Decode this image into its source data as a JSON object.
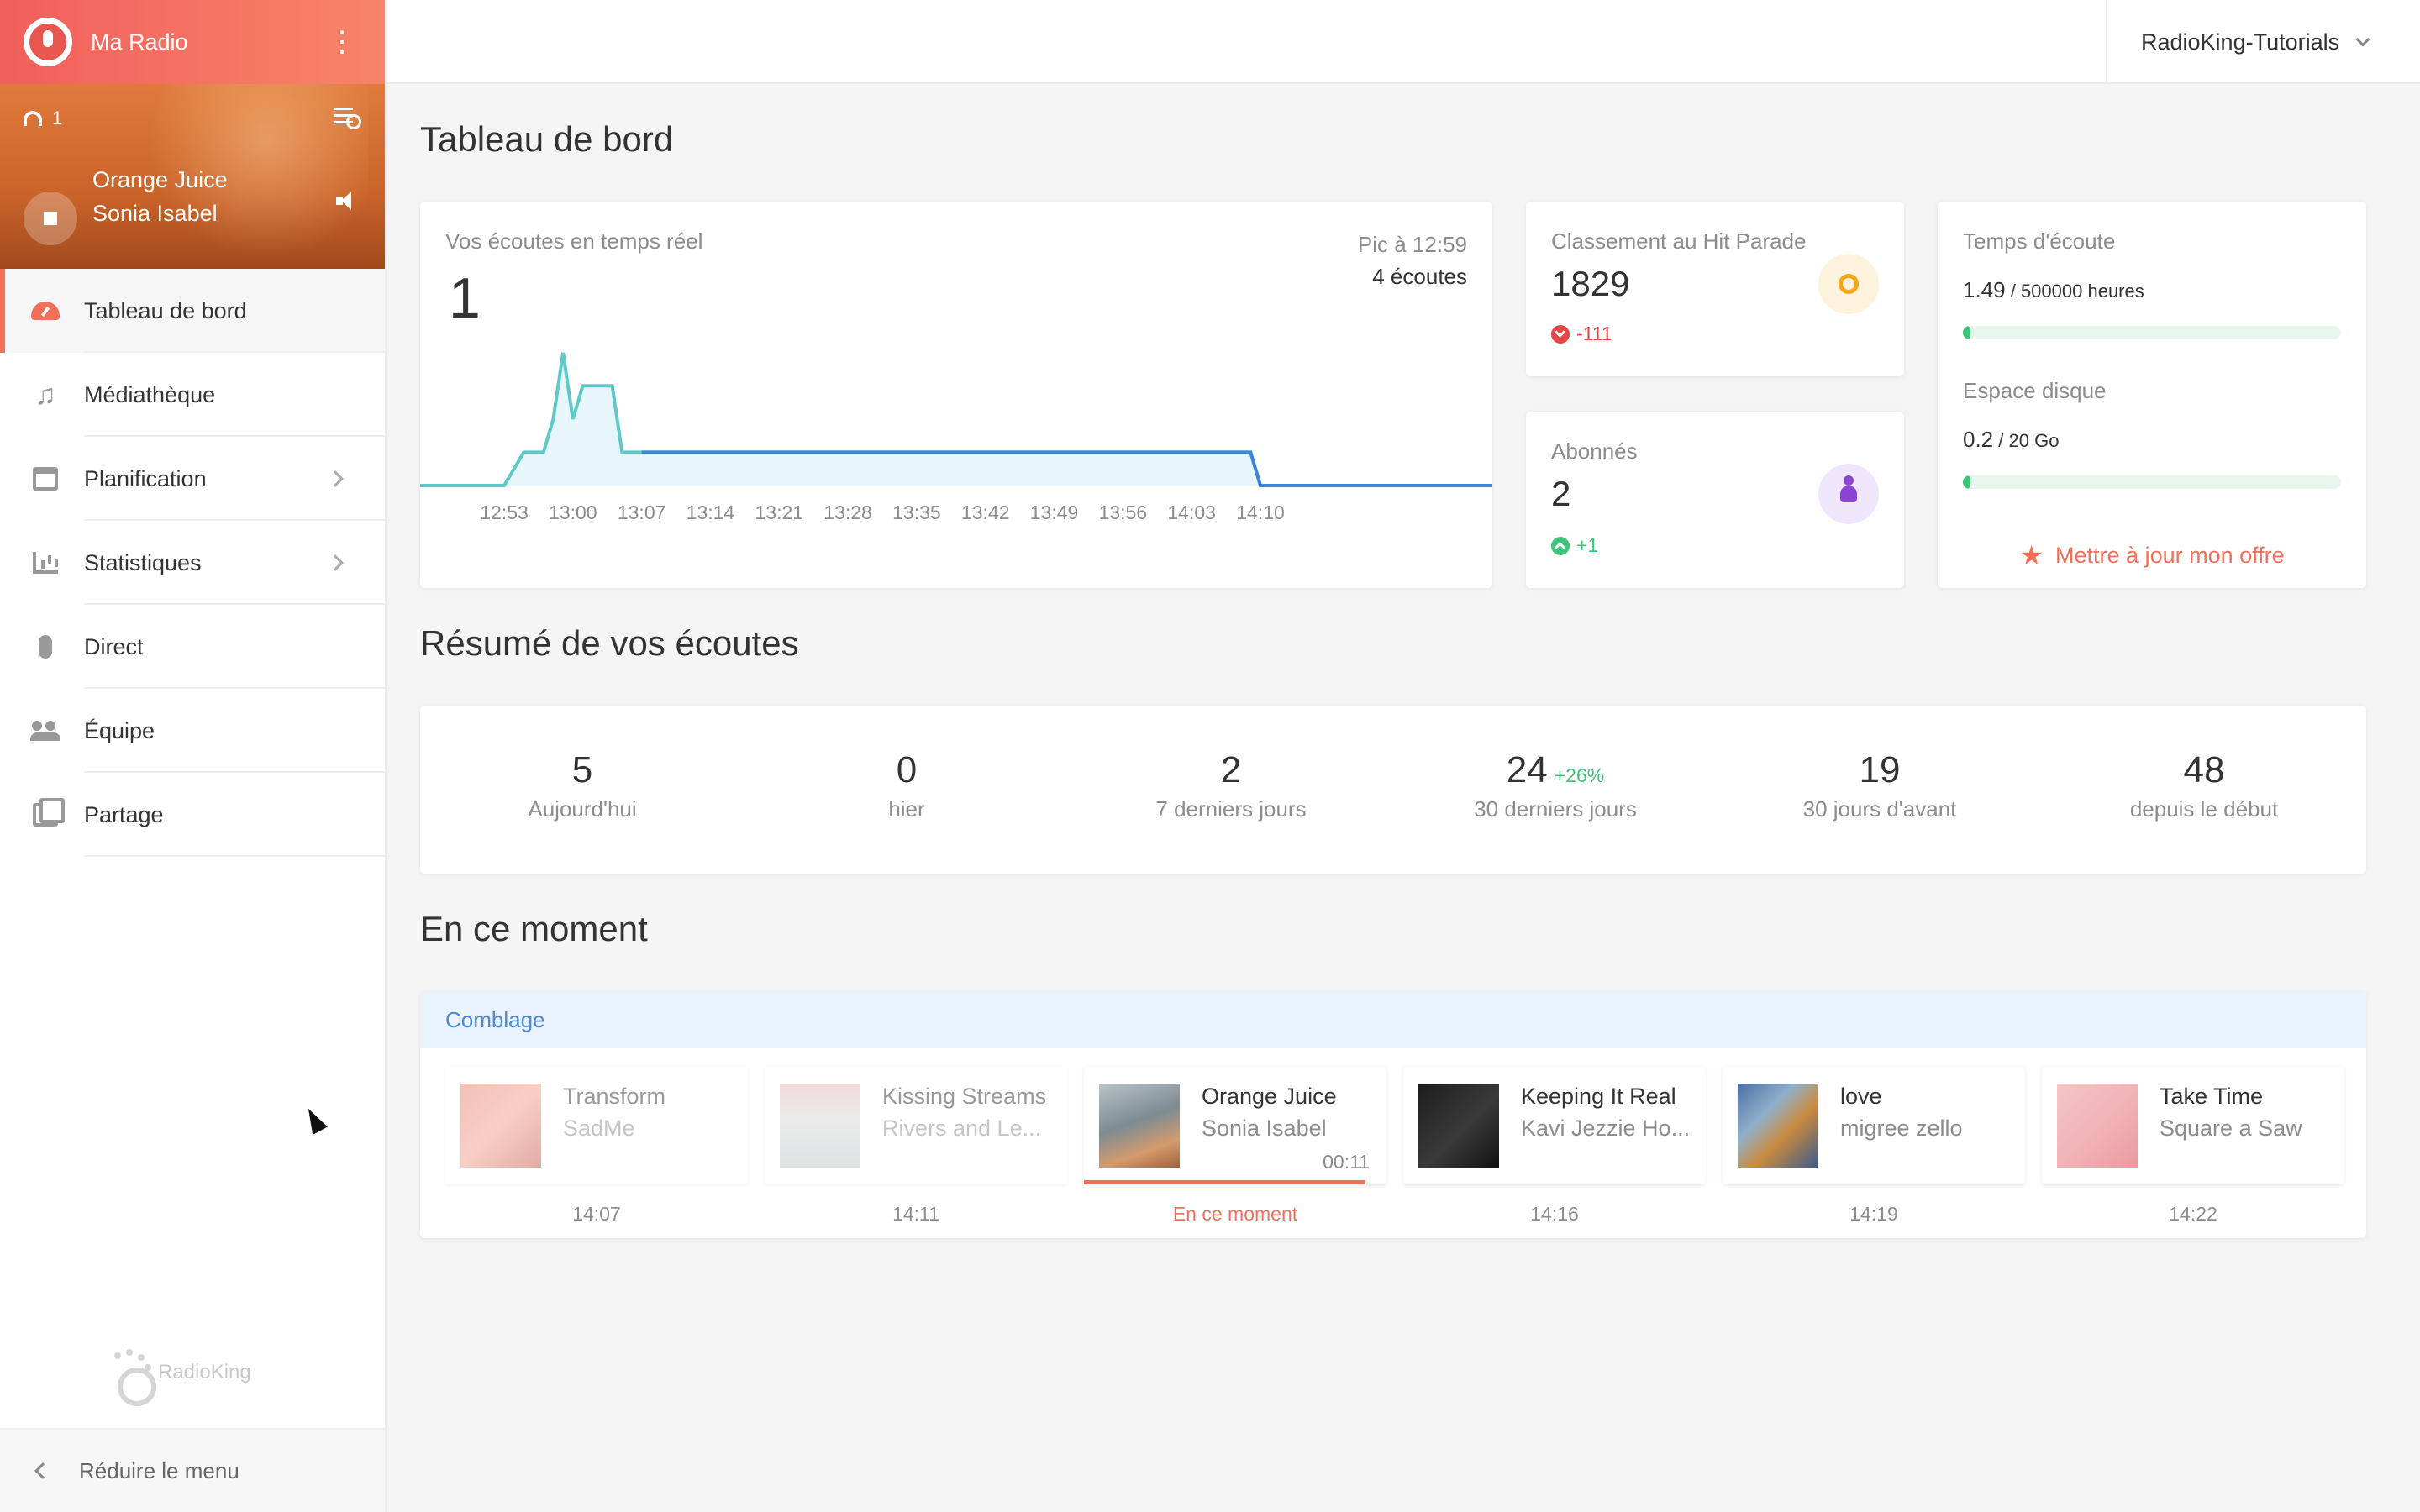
{
  "sidebar": {
    "app_title": "Ma Radio",
    "player": {
      "listeners": "1",
      "track_title": "Orange Juice",
      "track_artist": "Sonia Isabel"
    },
    "menu": [
      {
        "label": "Tableau de bord",
        "icon": "dashboard-icon",
        "active": true
      },
      {
        "label": "Médiathèque",
        "icon": "music-note-icon"
      },
      {
        "label": "Planification",
        "icon": "calendar-icon",
        "has_submenu": true
      },
      {
        "label": "Statistiques",
        "icon": "bar-chart-icon",
        "has_submenu": true
      },
      {
        "label": "Direct",
        "icon": "microphone-icon"
      },
      {
        "label": "Équipe",
        "icon": "team-icon"
      },
      {
        "label": "Partage",
        "icon": "share-icon"
      }
    ],
    "brand": "RadioKing",
    "collapse_label": "Réduire le menu"
  },
  "topbar": {
    "account": "RadioKing-Tutorials"
  },
  "dashboard": {
    "title": "Tableau de bord",
    "realtime": {
      "label": "Vos écoutes en temps réel",
      "value": "1",
      "peak_label": "Pic à 12:59",
      "peak_value": "4 écoutes"
    },
    "hit_parade": {
      "label": "Classement au Hit Parade",
      "value": "1829",
      "delta": "-111"
    },
    "subscribers": {
      "label": "Abonnés",
      "value": "2",
      "delta": "+1"
    },
    "quota": {
      "listening_label": "Temps d'écoute",
      "listening_value": "1.49",
      "listening_total": " / 500000 heures",
      "listening_fraction": 0.02,
      "disk_label": "Espace disque",
      "disk_value": "0.2",
      "disk_total": " / 20 Go",
      "disk_fraction": 0.02,
      "upgrade_label": "Mettre à jour mon offre"
    }
  },
  "summary": {
    "title": "Résumé de vos écoutes",
    "items": [
      {
        "value": "5",
        "label": "Aujourd'hui"
      },
      {
        "value": "0",
        "label": "hier"
      },
      {
        "value": "2",
        "label": "7 derniers jours"
      },
      {
        "value": "24",
        "label": "30 derniers jours",
        "extra": "+26%"
      },
      {
        "value": "19",
        "label": "30 jours d'avant"
      },
      {
        "value": "48",
        "label": "depuis le début"
      }
    ]
  },
  "now": {
    "title": "En ce moment",
    "playlist": "Comblage",
    "tracks": [
      {
        "title": "Transform",
        "artist": "SadMe",
        "time": "14:07",
        "state": "past"
      },
      {
        "title": "Kissing Streams",
        "artist": "Rivers and Le...",
        "time": "14:11",
        "state": "past"
      },
      {
        "title": "Orange Juice",
        "artist": "Sonia Isabel",
        "elapsed": "00:11",
        "time": "En ce moment",
        "state": "current",
        "progress": 0.93
      },
      {
        "title": "Keeping It Real",
        "artist": "Kavi Jezzie Ho...",
        "time": "14:16",
        "state": "next"
      },
      {
        "title": "love",
        "artist": "migree zello",
        "time": "14:19",
        "state": "next"
      },
      {
        "title": "Take Time",
        "artist": "Square a Saw",
        "time": "14:22",
        "state": "next"
      }
    ]
  },
  "colors": {
    "accent": "#f1705a",
    "chart_line": "#5fc9c9",
    "chart_line_2": "#3b86d8",
    "positive": "#3fc27a",
    "negative": "#e84545"
  },
  "chart_data": {
    "type": "area",
    "categories": [
      "12:53",
      "13:00",
      "13:07",
      "13:14",
      "13:21",
      "13:28",
      "13:35",
      "13:42",
      "13:49",
      "13:56",
      "14:03",
      "14:10"
    ],
    "x": [
      "12:45",
      "12:53",
      "12:55",
      "12:57",
      "12:58",
      "12:59",
      "13:00",
      "13:01",
      "13:02",
      "13:04",
      "13:05",
      "13:07",
      "13:14",
      "13:21",
      "13:28",
      "13:35",
      "13:42",
      "13:49",
      "13:56",
      "14:03",
      "14:08",
      "14:09",
      "14:10",
      "14:15"
    ],
    "values": [
      0,
      0,
      1,
      1,
      2,
      4,
      2,
      3,
      3,
      3,
      1,
      1,
      1,
      1,
      1,
      1,
      1,
      1,
      1,
      1,
      1,
      1,
      0,
      0
    ],
    "ylim": [
      0,
      4.5
    ],
    "grid": false,
    "legend": "none"
  }
}
